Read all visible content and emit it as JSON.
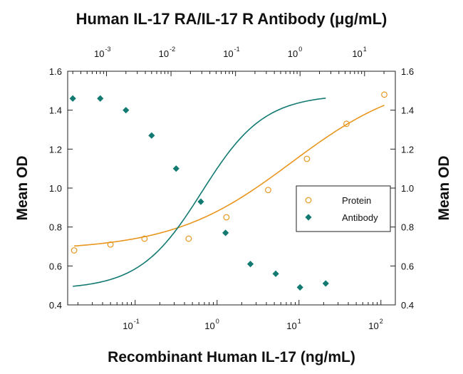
{
  "chart_data": {
    "type": "scatter",
    "title": "Human IL-17 RA/IL-17 R Antibody (μg/mL)",
    "xlabel": "Recombinant Human IL-17 (ng/mL)",
    "ylabel": "Mean OD",
    "ylabel_right": "Mean OD",
    "xscale": "log",
    "xlim": [
      0.015,
      150
    ],
    "x2lim": [
      0.00025,
      30
    ],
    "ylim": [
      0.4,
      1.6
    ],
    "yticks": [
      "0.4",
      "0.6",
      "0.8",
      "1.0",
      "1.2",
      "1.4",
      "1.6"
    ],
    "xticks": [
      {
        "base": "10",
        "exp": "-1",
        "value": 0.1
      },
      {
        "base": "10",
        "exp": "0",
        "value": 1
      },
      {
        "base": "10",
        "exp": "1",
        "value": 10
      },
      {
        "base": "10",
        "exp": "2",
        "value": 100
      }
    ],
    "x2ticks": [
      {
        "base": "10",
        "exp": "-3",
        "value": 0.001
      },
      {
        "base": "10",
        "exp": "-2",
        "value": 0.01
      },
      {
        "base": "10",
        "exp": "-1",
        "value": 0.1
      },
      {
        "base": "10",
        "exp": "0",
        "value": 1
      },
      {
        "base": "10",
        "exp": "1",
        "value": 10
      }
    ],
    "grid": false,
    "legend_position": "right",
    "series": [
      {
        "name": "Protein",
        "axis": "bottom",
        "marker": "open-circle",
        "color": "#e8961e",
        "x": [
          0.018,
          0.05,
          0.13,
          0.45,
          1.3,
          4.2,
          12.5,
          38,
          110
        ],
        "y": [
          0.68,
          0.71,
          0.74,
          0.74,
          0.85,
          0.99,
          1.15,
          1.33,
          1.48
        ],
        "fit": {
          "bottom": 0.68,
          "top": 1.58,
          "ec50": 8,
          "hill": 0.6
        }
      },
      {
        "name": "Antibody",
        "axis": "top",
        "marker": "filled-diamond",
        "color": "#137a72",
        "x": [
          0.0003,
          0.0008,
          0.002,
          0.005,
          0.012,
          0.029,
          0.07,
          0.17,
          0.42,
          1.0,
          2.5
        ],
        "y": [
          1.46,
          1.46,
          1.4,
          1.27,
          1.1,
          0.93,
          0.77,
          0.61,
          0.56,
          0.49,
          0.51
        ],
        "fit": {
          "bottom": 0.48,
          "top": 1.48,
          "ec50": 0.03,
          "hill": 0.9
        }
      }
    ]
  }
}
